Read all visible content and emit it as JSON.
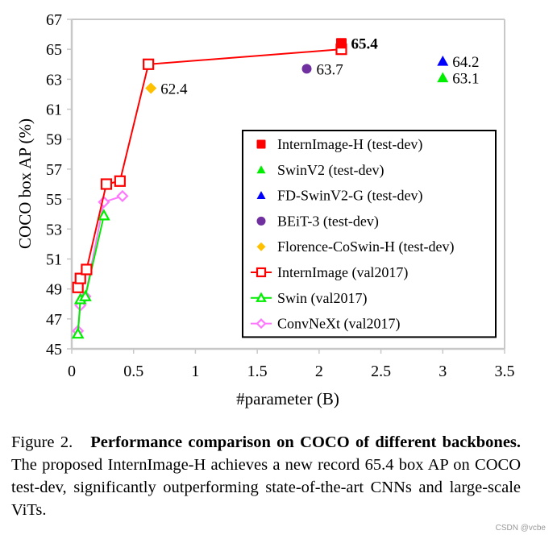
{
  "chart_data": {
    "type": "scatter",
    "title": "",
    "xlabel": "#parameter (B)",
    "ylabel": "COCO box AP (%)",
    "xlim": [
      0,
      3.5
    ],
    "ylim": [
      45,
      67
    ],
    "xticks": [
      "0",
      "0.5",
      "1",
      "1.5",
      "2",
      "2.5",
      "3",
      "3.5"
    ],
    "xtick_values": [
      0,
      0.5,
      1,
      1.5,
      2,
      2.5,
      3,
      3.5
    ],
    "yticks": [
      "45",
      "47",
      "49",
      "51",
      "53",
      "55",
      "57",
      "59",
      "61",
      "63",
      "65",
      "67"
    ],
    "ytick_values": [
      45,
      47,
      49,
      51,
      53,
      55,
      57,
      59,
      61,
      63,
      65,
      67
    ],
    "grid": false,
    "legend_position": "center-right",
    "series": [
      {
        "name": "InternImage-H (test-dev)",
        "kind": "point",
        "marker": "square-filled",
        "color": "#ff0000",
        "points": [
          [
            2.18,
            65.4
          ]
        ],
        "labels": [
          "65.4"
        ],
        "label_bold": true,
        "label_color": "#ff0000"
      },
      {
        "name": "SwinV2 (test-dev)",
        "kind": "point",
        "marker": "triangle-filled",
        "color": "#00ee00",
        "points": [
          [
            3.0,
            63.1
          ]
        ],
        "labels": [
          "63.1"
        ]
      },
      {
        "name": "FD-SwinV2-G (test-dev)",
        "kind": "point",
        "marker": "triangle-filled",
        "color": "#0000ff",
        "points": [
          [
            3.0,
            64.2
          ]
        ],
        "labels": [
          "64.2"
        ]
      },
      {
        "name": "BEiT-3 (test-dev)",
        "kind": "point",
        "marker": "circle-filled",
        "color": "#7030a0",
        "points": [
          [
            1.9,
            63.7
          ]
        ],
        "labels": [
          "63.7"
        ]
      },
      {
        "name": "Florence-CoSwin-H (test-dev)",
        "kind": "point",
        "marker": "diamond-filled",
        "color": "#ffc000",
        "points": [
          [
            0.64,
            62.4
          ]
        ],
        "labels": [
          "62.4"
        ]
      },
      {
        "name": "InternImage (val2017)",
        "kind": "line",
        "marker": "square-open",
        "color": "#ff0000",
        "points": [
          [
            0.05,
            49.1
          ],
          [
            0.07,
            49.7
          ],
          [
            0.12,
            50.3
          ],
          [
            0.28,
            56.0
          ],
          [
            0.39,
            56.2
          ],
          [
            0.62,
            64.0
          ],
          [
            2.18,
            65.0
          ]
        ]
      },
      {
        "name": "Swin (val2017)",
        "kind": "line",
        "marker": "triangle-open",
        "color": "#00ee00",
        "points": [
          [
            0.05,
            46.0
          ],
          [
            0.07,
            48.3
          ],
          [
            0.11,
            48.5
          ],
          [
            0.26,
            53.9
          ]
        ]
      },
      {
        "name": "ConvNeXt (val2017)",
        "kind": "line",
        "marker": "diamond-open",
        "color": "#ff77ff",
        "points": [
          [
            0.05,
            46.2
          ],
          [
            0.07,
            47.9
          ],
          [
            0.11,
            48.5
          ],
          [
            0.26,
            54.8
          ],
          [
            0.41,
            55.2
          ]
        ]
      }
    ],
    "legend_entries": [
      "InternImage-H (test-dev)",
      "SwinV2 (test-dev)",
      "FD-SwinV2-G (test-dev)",
      "BEiT-3 (test-dev)",
      "Florence-CoSwin-H (test-dev)",
      "InternImage (val2017)",
      "Swin (val2017)",
      "ConvNeXt (val2017)"
    ]
  },
  "caption": {
    "figure_label": "Figure 2.",
    "bold_text": "Performance comparison on COCO of different backbones.",
    "body_text": "The proposed InternImage-H achieves a new record 65.4 box AP on COCO test-dev, significantly outperforming state-of-the-art CNNs and large-scale ViTs."
  },
  "watermark": "CSDN @vcbe",
  "colors": {
    "axis": "#c8c8c8",
    "legend_border": "#000000"
  }
}
